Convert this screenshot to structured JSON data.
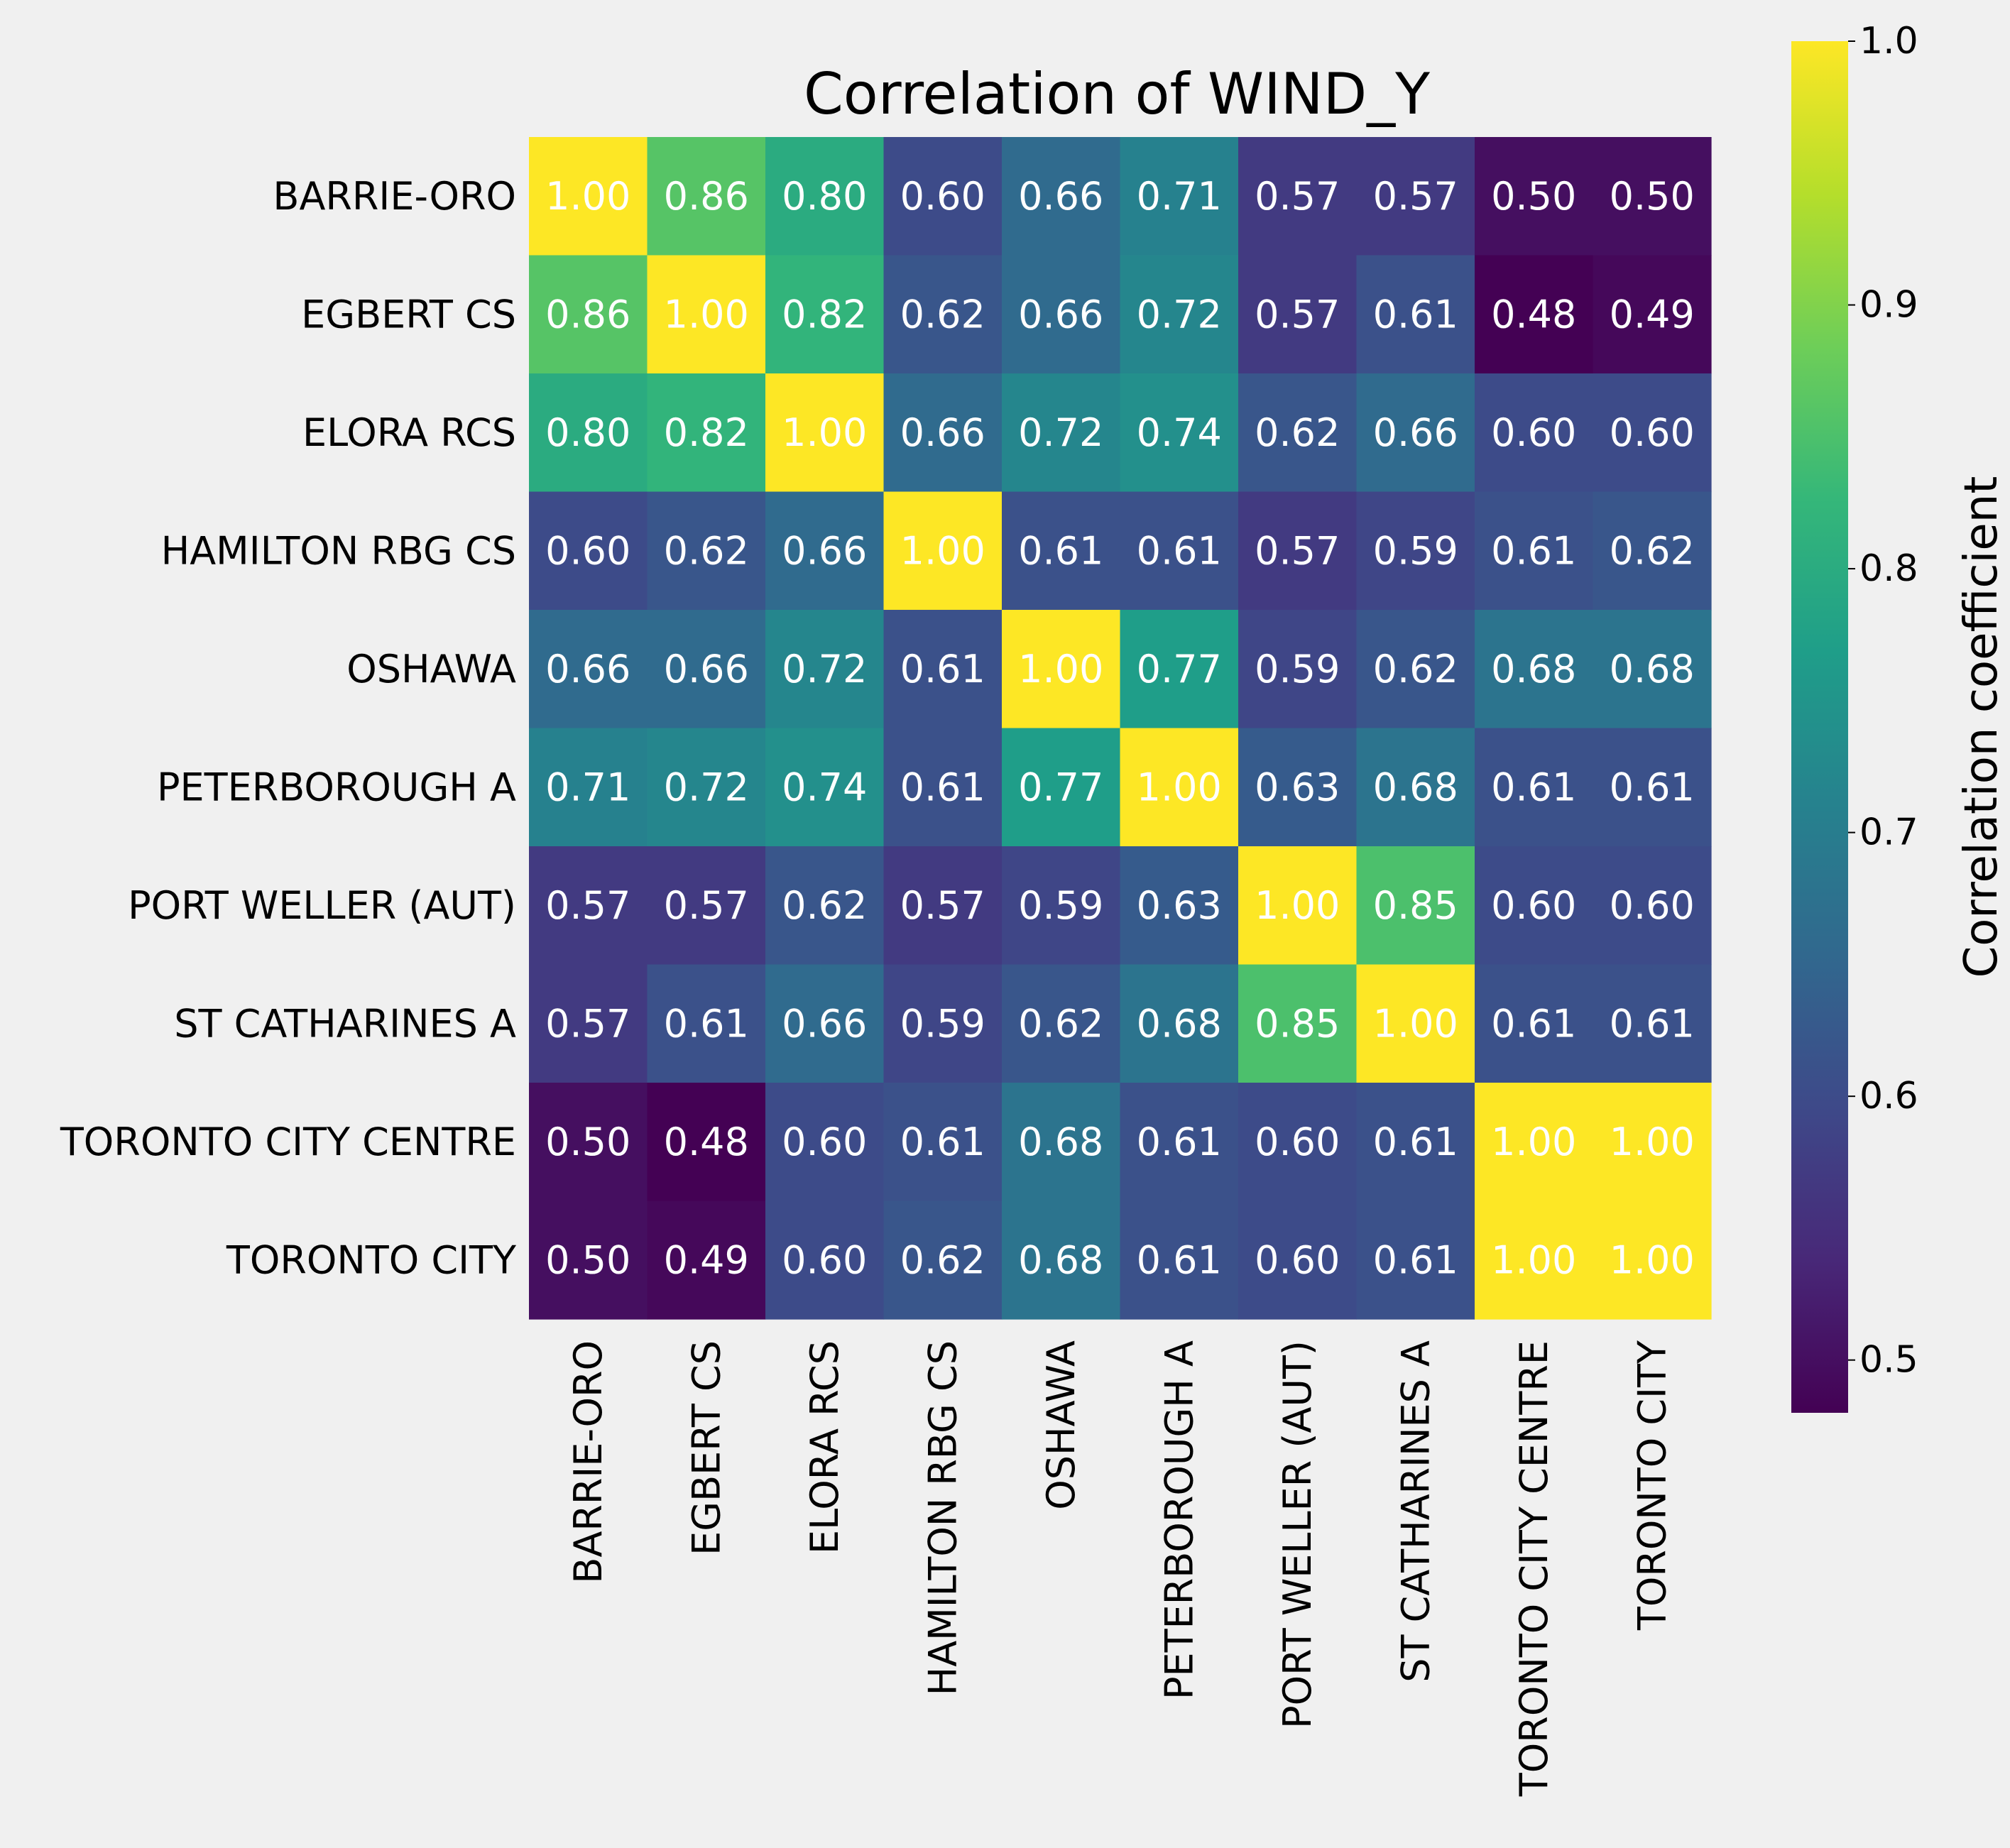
{
  "chart_data": {
    "type": "heatmap",
    "title": "Correlation of WIND_Y",
    "rows": [
      "BARRIE-ORO",
      "EGBERT CS",
      "ELORA RCS",
      "HAMILTON RBG CS",
      "OSHAWA",
      "PETERBOROUGH A",
      "PORT WELLER (AUT)",
      "ST CATHARINES A",
      "TORONTO CITY CENTRE",
      "TORONTO CITY"
    ],
    "columns": [
      "BARRIE-ORO",
      "EGBERT CS",
      "ELORA RCS",
      "HAMILTON RBG CS",
      "OSHAWA",
      "PETERBOROUGH A",
      "PORT WELLER (AUT)",
      "ST CATHARINES A",
      "TORONTO CITY CENTRE",
      "TORONTO CITY"
    ],
    "values": [
      [
        1.0,
        0.86,
        0.8,
        0.6,
        0.66,
        0.71,
        0.57,
        0.57,
        0.5,
        0.5
      ],
      [
        0.86,
        1.0,
        0.82,
        0.62,
        0.66,
        0.72,
        0.57,
        0.61,
        0.48,
        0.49
      ],
      [
        0.8,
        0.82,
        1.0,
        0.66,
        0.72,
        0.74,
        0.62,
        0.66,
        0.6,
        0.6
      ],
      [
        0.6,
        0.62,
        0.66,
        1.0,
        0.61,
        0.61,
        0.57,
        0.59,
        0.61,
        0.62
      ],
      [
        0.66,
        0.66,
        0.72,
        0.61,
        1.0,
        0.77,
        0.59,
        0.62,
        0.68,
        0.68
      ],
      [
        0.71,
        0.72,
        0.74,
        0.61,
        0.77,
        1.0,
        0.63,
        0.68,
        0.61,
        0.61
      ],
      [
        0.57,
        0.57,
        0.62,
        0.57,
        0.59,
        0.63,
        1.0,
        0.85,
        0.6,
        0.6
      ],
      [
        0.57,
        0.61,
        0.66,
        0.59,
        0.62,
        0.68,
        0.85,
        1.0,
        0.61,
        0.61
      ],
      [
        0.5,
        0.48,
        0.6,
        0.61,
        0.68,
        0.61,
        0.6,
        0.61,
        1.0,
        1.0
      ],
      [
        0.5,
        0.49,
        0.6,
        0.62,
        0.68,
        0.61,
        0.6,
        0.61,
        1.0,
        1.0
      ]
    ],
    "value_format": "0.00",
    "colormap": "viridis",
    "colorbar": {
      "label": "Correlation coefficient",
      "vmin": 0.48,
      "vmax": 1.0,
      "ticks": [
        0.5,
        0.6,
        0.7,
        0.8,
        0.9,
        1.0
      ]
    },
    "grid": false,
    "legend": "colorbar-right"
  },
  "colors": {
    "background": "#f0f0f0",
    "text_on_cells": "#ffffff",
    "viridis_stops": [
      "#440154",
      "#482878",
      "#3e4989",
      "#31688e",
      "#26828e",
      "#1f9e89",
      "#35b779",
      "#6ece58",
      "#b5de2b",
      "#fde725"
    ]
  }
}
